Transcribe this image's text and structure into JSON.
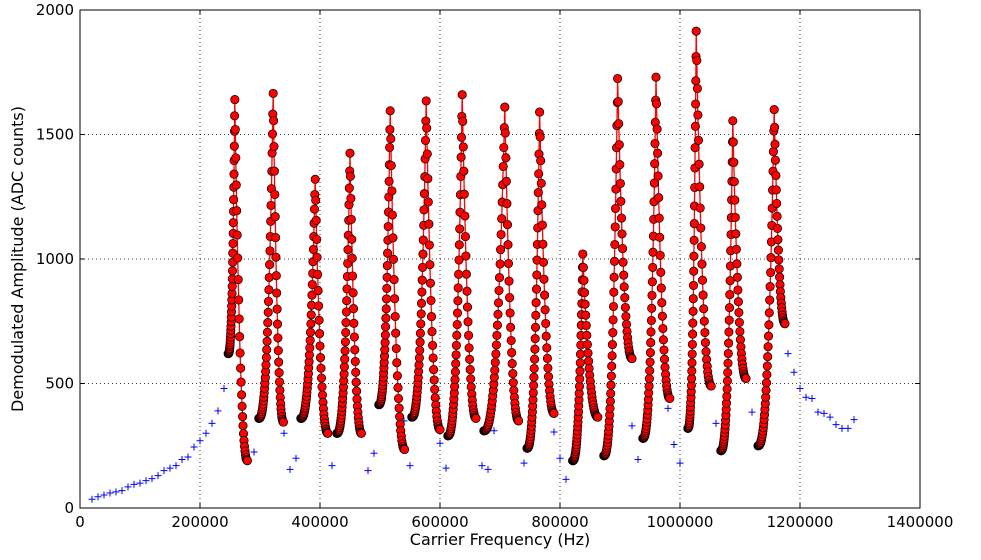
{
  "chart_data": {
    "type": "scatter",
    "title": "",
    "xlabel": "Carrier Frequency (Hz)",
    "ylabel": "Demodulated Amplitude (ADC counts)",
    "xlim": [
      0,
      1400000
    ],
    "ylim": [
      0,
      2000
    ],
    "x_ticks": [
      0,
      200000,
      400000,
      600000,
      800000,
      1000000,
      1200000,
      1400000
    ],
    "y_ticks": [
      0,
      500,
      1000,
      1500,
      2000
    ],
    "grid": true,
    "colors": {
      "background_markers": "#0000ff",
      "resonance_fill": "#ff0000",
      "resonance_edge": "#000000",
      "resonance_line": "#ff0000"
    },
    "series": [
      {
        "marker": "plus",
        "color": "#0000ff",
        "points": [
          [
            20000,
            35
          ],
          [
            30000,
            45
          ],
          [
            40000,
            52
          ],
          [
            50000,
            60
          ],
          [
            60000,
            65
          ],
          [
            70000,
            70
          ],
          [
            80000,
            85
          ],
          [
            90000,
            95
          ],
          [
            100000,
            100
          ],
          [
            110000,
            110
          ],
          [
            120000,
            118
          ],
          [
            130000,
            130
          ],
          [
            140000,
            150
          ],
          [
            150000,
            160
          ],
          [
            160000,
            170
          ],
          [
            170000,
            195
          ],
          [
            180000,
            205
          ],
          [
            190000,
            245
          ],
          [
            200000,
            270
          ],
          [
            210000,
            300
          ],
          [
            220000,
            340
          ],
          [
            230000,
            390
          ],
          [
            240000,
            480
          ],
          [
            290000,
            225
          ],
          [
            340000,
            300
          ],
          [
            350000,
            155
          ],
          [
            360000,
            200
          ],
          [
            410000,
            310
          ],
          [
            420000,
            170
          ],
          [
            480000,
            150
          ],
          [
            490000,
            220
          ],
          [
            540000,
            350
          ],
          [
            550000,
            170
          ],
          [
            600000,
            260
          ],
          [
            610000,
            160
          ],
          [
            670000,
            170
          ],
          [
            680000,
            155
          ],
          [
            690000,
            310
          ],
          [
            740000,
            180
          ],
          [
            790000,
            305
          ],
          [
            800000,
            200
          ],
          [
            810000,
            115
          ],
          [
            920000,
            330
          ],
          [
            930000,
            195
          ],
          [
            980000,
            400
          ],
          [
            990000,
            255
          ],
          [
            1000000,
            180
          ],
          [
            1060000,
            340
          ],
          [
            1120000,
            385
          ],
          [
            1180000,
            620
          ],
          [
            1190000,
            545
          ],
          [
            1200000,
            480
          ],
          [
            1210000,
            445
          ],
          [
            1220000,
            440
          ],
          [
            1230000,
            385
          ],
          [
            1240000,
            380
          ],
          [
            1250000,
            365
          ],
          [
            1260000,
            335
          ],
          [
            1270000,
            320
          ],
          [
            1280000,
            320
          ],
          [
            1290000,
            355
          ]
        ]
      },
      {
        "marker": "circle-line",
        "color": "#ff0000",
        "resonances": [
          {
            "start": 247000,
            "min": 620,
            "peak_x": 258000,
            "peak": 1640,
            "end_x": 279000,
            "end": 190
          },
          {
            "start": 298000,
            "min": 360,
            "peak_x": 322000,
            "peak": 1665,
            "end_x": 339000,
            "end": 345
          },
          {
            "start": 368000,
            "min": 360,
            "peak_x": 392000,
            "peak": 1320,
            "end_x": 413000,
            "end": 300
          },
          {
            "start": 428000,
            "min": 300,
            "peak_x": 450000,
            "peak": 1425,
            "end_x": 469000,
            "end": 300
          },
          {
            "start": 498000,
            "min": 415,
            "peak_x": 517000,
            "peak": 1595,
            "end_x": 541000,
            "end": 235
          },
          {
            "start": 553000,
            "min": 365,
            "peak_x": 577000,
            "peak": 1635,
            "end_x": 600000,
            "end": 315
          },
          {
            "start": 613000,
            "min": 290,
            "peak_x": 637000,
            "peak": 1660,
            "end_x": 660000,
            "end": 360
          },
          {
            "start": 673000,
            "min": 310,
            "peak_x": 708000,
            "peak": 1610,
            "end_x": 731000,
            "end": 350
          },
          {
            "start": 745000,
            "min": 240,
            "peak_x": 766000,
            "peak": 1590,
            "end_x": 790000,
            "end": 380
          },
          {
            "start": 821000,
            "min": 190,
            "peak_x": 838000,
            "peak": 1020,
            "end_x": 863000,
            "end": 365
          },
          {
            "start": 873000,
            "min": 210,
            "peak_x": 896000,
            "peak": 1725,
            "end_x": 920000,
            "end": 600
          },
          {
            "start": 938000,
            "min": 280,
            "peak_x": 960000,
            "peak": 1730,
            "end_x": 983000,
            "end": 440
          },
          {
            "start": 1013000,
            "min": 320,
            "peak_x": 1027000,
            "peak": 1915,
            "end_x": 1052000,
            "end": 490
          },
          {
            "start": 1068000,
            "min": 230,
            "peak_x": 1088000,
            "peak": 1555,
            "end_x": 1110000,
            "end": 520
          },
          {
            "start": 1130000,
            "min": 250,
            "peak_x": 1157000,
            "peak": 1600,
            "end_x": 1175000,
            "end": 740
          }
        ]
      }
    ]
  }
}
